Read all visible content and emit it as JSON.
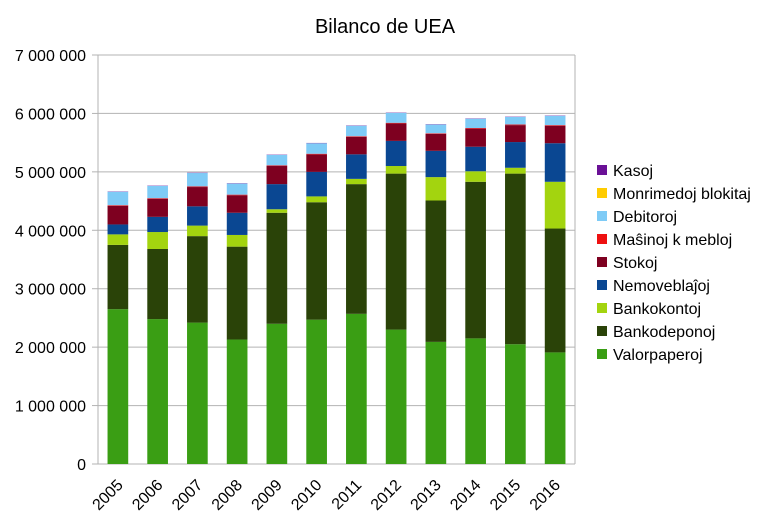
{
  "chart_data": {
    "type": "bar",
    "stacked": true,
    "title": "Bilanco de UEA",
    "xlabel": "",
    "ylabel": "",
    "ylim": [
      0,
      7000000
    ],
    "y_ticks": [
      0,
      1000000,
      2000000,
      3000000,
      4000000,
      5000000,
      6000000,
      7000000
    ],
    "y_tick_labels": [
      "0",
      "1 000 000",
      "2 000 000",
      "3 000 000",
      "4 000 000",
      "5 000 000",
      "6 000 000",
      "7 000 000"
    ],
    "grid": true,
    "legend_position": "right",
    "categories": [
      "2005",
      "2006",
      "2007",
      "2008",
      "2009",
      "2010",
      "2011",
      "2012",
      "2013",
      "2014",
      "2015",
      "2016"
    ],
    "series": [
      {
        "name": "Valorpaperoj",
        "color": "#3a9e14",
        "values": [
          2650000,
          2480000,
          2420000,
          2130000,
          2400000,
          2470000,
          2570000,
          2300000,
          2090000,
          2150000,
          2050000,
          1910000
        ]
      },
      {
        "name": "Bankodeponoj",
        "color": "#2a4308",
        "values": [
          1100000,
          1200000,
          1480000,
          1590000,
          1900000,
          2010000,
          2220000,
          2670000,
          2420000,
          2680000,
          2920000,
          2120000
        ]
      },
      {
        "name": "Bankokontoj",
        "color": "#a3d40f",
        "values": [
          180000,
          290000,
          180000,
          200000,
          60000,
          100000,
          90000,
          130000,
          400000,
          180000,
          100000,
          800000
        ]
      },
      {
        "name": "Nemoveblaĵoj",
        "color": "#0a4792",
        "values": [
          170000,
          260000,
          330000,
          380000,
          430000,
          420000,
          420000,
          430000,
          450000,
          420000,
          440000,
          660000
        ]
      },
      {
        "name": "Stokoj",
        "color": "#7e0020",
        "values": [
          320000,
          310000,
          330000,
          300000,
          310000,
          300000,
          300000,
          300000,
          290000,
          310000,
          290000,
          300000
        ]
      },
      {
        "name": "Maŝinoj k mebloj",
        "color": "#ee1111",
        "values": [
          10000,
          10000,
          10000,
          10000,
          10000,
          10000,
          10000,
          10000,
          10000,
          10000,
          10000,
          10000
        ]
      },
      {
        "name": "Debitoroj",
        "color": "#7ecbf6",
        "values": [
          230000,
          210000,
          230000,
          190000,
          180000,
          180000,
          180000,
          170000,
          150000,
          160000,
          130000,
          160000
        ]
      },
      {
        "name": "Monrimedoj blokitaj",
        "color": "#ffcc00",
        "values": [
          0,
          0,
          0,
          0,
          0,
          0,
          0,
          0,
          0,
          0,
          0,
          0
        ]
      },
      {
        "name": "Kasoj",
        "color": "#6a1096",
        "values": [
          5000,
          5000,
          5000,
          5000,
          5000,
          5000,
          5000,
          5000,
          5000,
          5000,
          5000,
          5000
        ]
      }
    ]
  }
}
